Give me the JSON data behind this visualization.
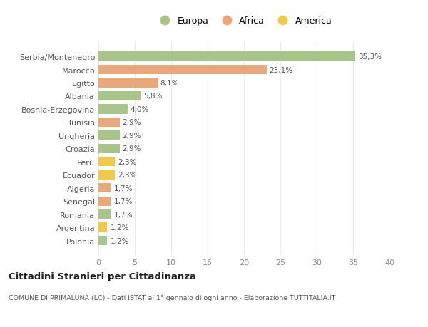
{
  "categories": [
    "Polonia",
    "Argentina",
    "Romania",
    "Senegal",
    "Algeria",
    "Ecuador",
    "Perù",
    "Croazia",
    "Ungheria",
    "Tunisia",
    "Bosnia-Erzegovina",
    "Albania",
    "Egitto",
    "Marocco",
    "Serbia/Montenegro"
  ],
  "values": [
    1.2,
    1.2,
    1.7,
    1.7,
    1.7,
    2.3,
    2.3,
    2.9,
    2.9,
    2.9,
    4.0,
    5.8,
    8.1,
    23.1,
    35.3
  ],
  "labels": [
    "1,2%",
    "1,2%",
    "1,7%",
    "1,7%",
    "1,7%",
    "2,3%",
    "2,3%",
    "2,9%",
    "2,9%",
    "2,9%",
    "4,0%",
    "5,8%",
    "8,1%",
    "23,1%",
    "35,3%"
  ],
  "continent": [
    "Europa",
    "America",
    "Europa",
    "Africa",
    "Africa",
    "America",
    "America",
    "Europa",
    "Europa",
    "Africa",
    "Europa",
    "Europa",
    "Africa",
    "Africa",
    "Europa"
  ],
  "colors": {
    "Europa": "#a8c48a",
    "Africa": "#e8a87c",
    "America": "#f0c84a"
  },
  "title": "Cittadini Stranieri per Cittadinanza",
  "subtitle": "COMUNE DI PRIMALUNA (LC) - Dati ISTAT al 1° gennaio di ogni anno - Elaborazione TUTTITALIA.IT",
  "xlim": [
    0,
    40
  ],
  "xticks": [
    0,
    5,
    10,
    15,
    20,
    25,
    30,
    35,
    40
  ],
  "background_color": "#ffffff",
  "grid_color": "#e8e8e8",
  "bar_height": 0.72
}
